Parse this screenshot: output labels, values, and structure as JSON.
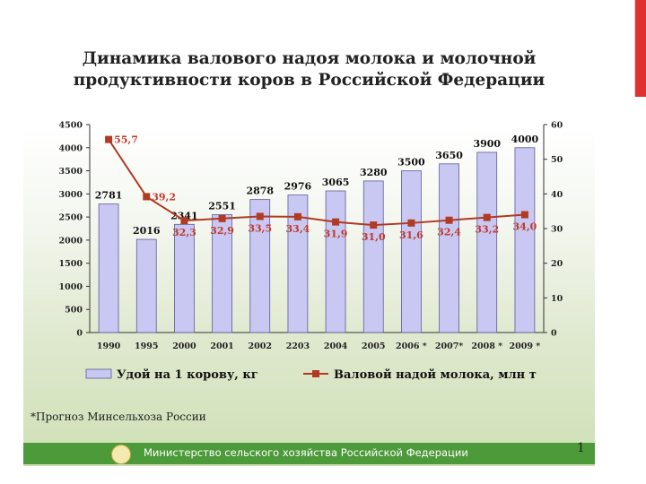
{
  "title_line1": "Динамика валового надоя молока и молочной",
  "title_line2": "продуктивности коров в Российской Федерации",
  "footnote": "*Прогноз Минсельхоза России",
  "footer_text": "Министерство сельского хозяйства Российской Федерации",
  "page_number": "1",
  "colors": {
    "bar": "#c9c8f2",
    "bar_stroke": "#5b5b9a",
    "line": "#b03a22",
    "footer": "#4d9a3a",
    "accent": "#e03030"
  },
  "chart_data": {
    "type": "bar",
    "categories": [
      "1990",
      "1995",
      "2000",
      "2001",
      "2002",
      "2203",
      "2004",
      "2005",
      "2006 *",
      "2007*",
      "2008 *",
      "2009 *"
    ],
    "series": [
      {
        "name": "Удой на 1 корову, кг",
        "type": "bar",
        "axis": "left",
        "values": [
          2781,
          2016,
          2341,
          2551,
          2878,
          2976,
          3065,
          3280,
          3500,
          3650,
          3900,
          4000
        ],
        "labels": [
          "2781",
          "2016",
          "2341",
          "2551",
          "2878",
          "2976",
          "3065",
          "3280",
          "3500",
          "3650",
          "3900",
          "4000"
        ]
      },
      {
        "name": "Валовой надой молока, млн т",
        "type": "line",
        "axis": "right",
        "values": [
          55.7,
          39.2,
          32.3,
          32.9,
          33.5,
          33.4,
          31.9,
          31.0,
          31.6,
          32.4,
          33.2,
          34.0
        ],
        "labels": [
          "55,7",
          "39,2",
          "32,3",
          "32,9",
          "33,5",
          "33,4",
          "31,9",
          "31,0",
          "31,6",
          "32,4",
          "33,2",
          "34,0"
        ]
      }
    ],
    "y_left": {
      "min": 0,
      "max": 4500,
      "step": 500,
      "ticks": [
        "0",
        "500",
        "1000",
        "1500",
        "2000",
        "2500",
        "3000",
        "3500",
        "4000",
        "4500"
      ]
    },
    "y_right": {
      "min": 0,
      "max": 60,
      "step": 10,
      "ticks": [
        "0",
        "10",
        "20",
        "30",
        "40",
        "50",
        "60"
      ]
    },
    "grid": false,
    "legend_position": "bottom"
  }
}
